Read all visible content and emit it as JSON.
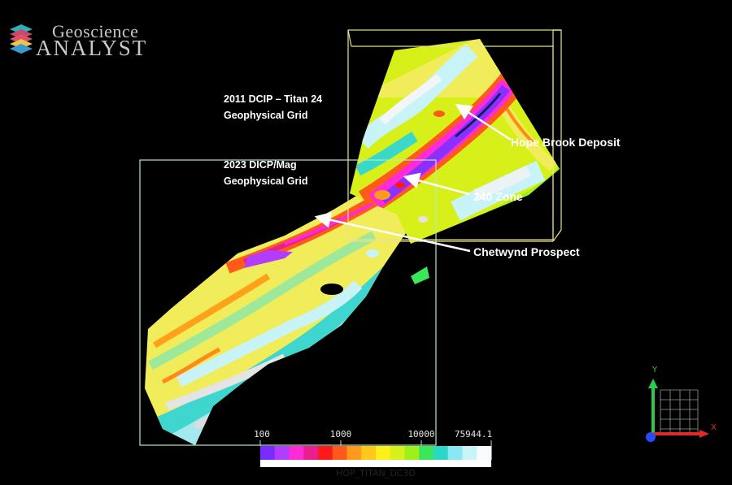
{
  "app": {
    "logo_line1": "Geoscience",
    "logo_line2": "ANALYST"
  },
  "grids": {
    "titan_label_line1": "2011 DCIP – Titan 24",
    "titan_label_line2": "Geophysical Grid",
    "dicp_label_line1": "2023 DICP/Mag",
    "dicp_label_line2": "Geophysical Grid"
  },
  "targets": {
    "hope_brook": "Hope Brook Deposit",
    "zone_240": "240 Zone",
    "chetwynd": "Chetwynd Prospect"
  },
  "color_scale": {
    "name": "HOP_TITAN_DC3D",
    "tick_labels": [
      "100",
      "1000",
      "10000",
      "75944.1"
    ],
    "colors": [
      "#7a2cff",
      "#b23cff",
      "#ff2ad8",
      "#e8208f",
      "#ff1a1a",
      "#ff5a1a",
      "#ff9a1a",
      "#ffc81a",
      "#fff01a",
      "#d8f01a",
      "#9ef01a",
      "#3ae65a",
      "#2ad8c8",
      "#8ae8f0",
      "#c8f4f8",
      "#f8fbff"
    ]
  },
  "triad": {
    "y_label": "Y",
    "x_label": "X"
  }
}
